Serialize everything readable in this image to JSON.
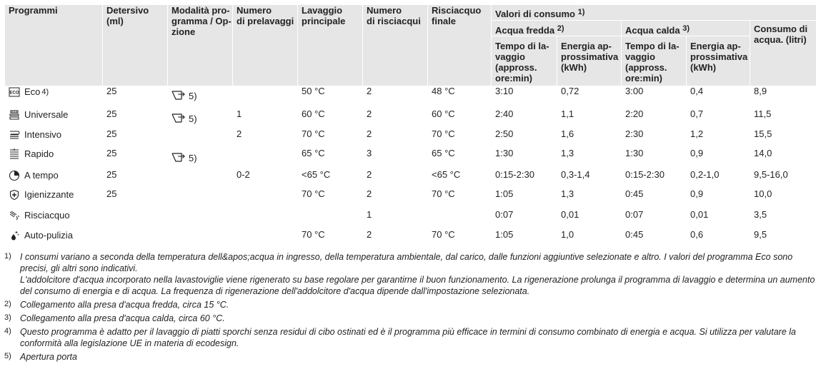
{
  "header": {
    "programmi": "Programmi",
    "detersivo": [
      "Detersivo",
      "(ml)"
    ],
    "modalita": [
      "Modalità pro-",
      "gramma / Op-",
      "zione"
    ],
    "prelavaggi": [
      "Numero",
      "di prelavaggi"
    ],
    "lavaggio": [
      "Lavaggio",
      "principale"
    ],
    "risciacqui": [
      "Numero",
      "di risciacqui"
    ],
    "risciacquo_finale": [
      "Risciacquo",
      "finale"
    ],
    "valori": "Valori di consumo",
    "valori_fn": "1)",
    "acqua_fredda": "Acqua fredda",
    "acqua_fredda_fn": "2)",
    "acqua_calda": "Acqua calda",
    "acqua_calda_fn": "3)",
    "consumo_acqua": [
      "Consumo di",
      "acqua. (litri)"
    ],
    "tempo": [
      "Tempo di la-",
      "vaggio",
      "(appross.",
      "ore:min)"
    ],
    "energia": [
      "Energia ap-",
      "prossimativa",
      "(kWh)"
    ]
  },
  "rows": [
    {
      "icon": "eco-icon",
      "program": "Eco",
      "program_fn": "4)",
      "detersivo": "25",
      "door": true,
      "door_fn": "5)",
      "prelavaggi": "",
      "lavaggio": "50 °C",
      "risciacqui": "2",
      "finale": "48 °C",
      "tempo_f": "3:10",
      "energia_f": "0,72",
      "tempo_c": "3:00",
      "energia_c": "0,4",
      "acqua": "8,9"
    },
    {
      "icon": "universal-icon",
      "program": "Universale",
      "program_fn": "",
      "detersivo": "25",
      "door": true,
      "door_fn": "5)",
      "prelavaggi": "1",
      "lavaggio": "60 °C",
      "risciacqui": "2",
      "finale": "60 °C",
      "tempo_f": "2:40",
      "energia_f": "1,1",
      "tempo_c": "2:20",
      "energia_c": "0,7",
      "acqua": "11,5"
    },
    {
      "icon": "intensive-icon",
      "program": "Intensivo",
      "program_fn": "",
      "detersivo": "25",
      "door": false,
      "door_fn": "",
      "prelavaggi": "2",
      "lavaggio": "70 °C",
      "risciacqui": "2",
      "finale": "70 °C",
      "tempo_f": "2:50",
      "energia_f": "1,6",
      "tempo_c": "2:30",
      "energia_c": "1,2",
      "acqua": "15,5"
    },
    {
      "icon": "rapid-icon",
      "program": "Rapido",
      "program_fn": "",
      "detersivo": "25",
      "door": true,
      "door_fn": "5)",
      "prelavaggi": "",
      "lavaggio": "65 °C",
      "risciacqui": "3",
      "finale": "65 °C",
      "tempo_f": "1:30",
      "energia_f": "1,3",
      "tempo_c": "1:30",
      "energia_c": "0,9",
      "acqua": "14,0"
    },
    {
      "icon": "timer-icon",
      "program": "A tempo",
      "program_fn": "",
      "detersivo": "25",
      "door": false,
      "door_fn": "",
      "prelavaggi": "0-2",
      "lavaggio": "<65 °C",
      "risciacqui": "2",
      "finale": "<65 °C",
      "tempo_f": "0:15-2:30",
      "energia_f": "0,3-1,4",
      "tempo_c": "0:15-2:30",
      "energia_c": "0,2-1,0",
      "acqua": "9,5-16,0"
    },
    {
      "icon": "hygiene-icon",
      "program": "Igienizzante",
      "program_fn": "",
      "detersivo": "25",
      "door": false,
      "door_fn": "",
      "prelavaggi": "",
      "lavaggio": "70 °C",
      "risciacqui": "2",
      "finale": "70 °C",
      "tempo_f": "1:05",
      "energia_f": "1,3",
      "tempo_c": "0:45",
      "energia_c": "0,9",
      "acqua": "10,0"
    },
    {
      "icon": "rinse-icon",
      "program": "Risciacquo",
      "program_fn": "",
      "detersivo": "",
      "door": false,
      "door_fn": "",
      "prelavaggi": "",
      "lavaggio": "",
      "risciacqui": "1",
      "finale": "",
      "tempo_f": "0:07",
      "energia_f": "0,01",
      "tempo_c": "0:07",
      "energia_c": "0,01",
      "acqua": "3,5"
    },
    {
      "icon": "self-clean-icon",
      "program": "Auto-pulizia",
      "program_fn": "",
      "detersivo": "",
      "door": false,
      "door_fn": "",
      "prelavaggi": "",
      "lavaggio": "70 °C",
      "risciacqui": "2",
      "finale": "70 °C",
      "tempo_f": "1:05",
      "energia_f": "1,0",
      "tempo_c": "0:45",
      "energia_c": "0,6",
      "acqua": "9,5"
    }
  ],
  "notes": [
    {
      "num": "1)",
      "lines": [
        "I consumi variano a seconda della temperatura dell&apos;acqua in ingresso, della temperatura ambientale, dal carico, dalle funzioni aggiuntive selezionate e altro. I valori del programma Eco sono precisi, gli altri sono indicativi.",
        "L'addolcitore d'acqua incorporato nella lavastoviglie viene rigenerato su base regolare per garantirne il buon funzionamento. La rigenerazione prolunga il programma di lavaggio e determina un aumento del consumo di energia e di acqua. La frequenza di rigenerazione dell'addolcitore d'acqua dipende dall'impostazione selezionata."
      ]
    },
    {
      "num": "2)",
      "lines": [
        "Collegamento alla presa d'acqua fredda, circa 15 °C."
      ]
    },
    {
      "num": "3)",
      "lines": [
        "Collegamento alla presa d'acqua calda, circa 60 °C."
      ]
    },
    {
      "num": "4)",
      "lines": [
        "Questo programma è adatto per il lavaggio di piatti sporchi senza residui di cibo ostinati ed è il programma più efficace in termini di consumo combinato di energia e acqua. Si utilizza per valutare la conformità alla legislazione UE in materia di ecodesign."
      ]
    },
    {
      "num": "5)",
      "lines": [
        "Apertura porta"
      ]
    }
  ]
}
